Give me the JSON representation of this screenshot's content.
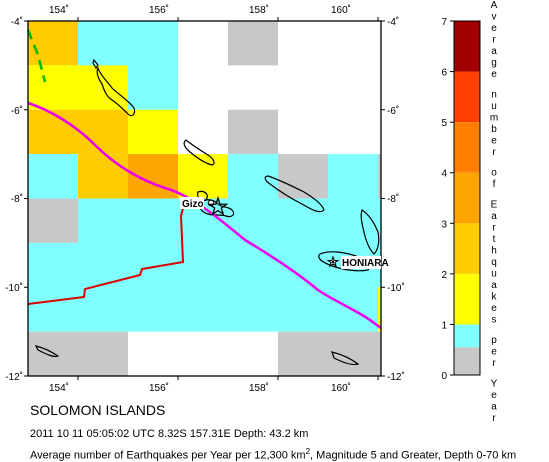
{
  "map": {
    "lon_ticks": [
      "154˚",
      "156˚",
      "158˚",
      "160˚"
    ],
    "lat_ticks": [
      "-4˚",
      "-6˚",
      "-8˚",
      "-10˚",
      "-12˚"
    ],
    "grid_cells": [
      {
        "lon": 153,
        "lat": -4,
        "value": 2.0
      },
      {
        "lon": 154,
        "lat": -4,
        "value": 0.8
      },
      {
        "lon": 155,
        "lat": -4,
        "value": 0.8
      },
      {
        "lon": 157,
        "lat": -4,
        "value": 0.3
      },
      {
        "lon": 153,
        "lat": -5,
        "value": 1.6
      },
      {
        "lon": 154,
        "lat": -5,
        "value": 1.6
      },
      {
        "lon": 155,
        "lat": -5,
        "value": 0.8
      },
      {
        "lon": 153,
        "lat": -6,
        "value": 2.6
      },
      {
        "lon": 154,
        "lat": -6,
        "value": 2.6
      },
      {
        "lon": 155,
        "lat": -6,
        "value": 1.6
      },
      {
        "lon": 157,
        "lat": -6,
        "value": 0.3
      },
      {
        "lon": 153,
        "lat": -7,
        "value": 0.7
      },
      {
        "lon": 154,
        "lat": -7,
        "value": 2.5
      },
      {
        "lon": 155,
        "lat": -7,
        "value": 3.3
      },
      {
        "lon": 156,
        "lat": -7,
        "value": 1.6
      },
      {
        "lon": 157,
        "lat": -7,
        "value": 0.8
      },
      {
        "lon": 158,
        "lat": -7,
        "value": 0.3
      },
      {
        "lon": 159,
        "lat": -7,
        "value": 0.5
      },
      {
        "lon": 160,
        "lat": -7,
        "value": 0.3
      },
      {
        "lon": 153,
        "lat": -8,
        "value": 0.3
      },
      {
        "lon": 154,
        "lat": -8,
        "value": 0.8
      },
      {
        "lon": 155,
        "lat": -8,
        "value": 0.8
      },
      {
        "lon": 156,
        "lat": -8,
        "value": 0.8
      },
      {
        "lon": 157,
        "lat": -8,
        "value": 0.7
      },
      {
        "lon": 158,
        "lat": -8,
        "value": 0.8
      },
      {
        "lon": 159,
        "lat": -8,
        "value": 0.8
      },
      {
        "lon": 160,
        "lat": -8,
        "value": 0.5
      },
      {
        "lon": 161,
        "lat": -8,
        "value": 0.3
      },
      {
        "lon": 153,
        "lat": -9,
        "value": 0.5
      },
      {
        "lon": 154,
        "lat": -9,
        "value": 0.6
      },
      {
        "lon": 155,
        "lat": -9,
        "value": 0.7
      },
      {
        "lon": 156,
        "lat": -9,
        "value": 0.8
      },
      {
        "lon": 157,
        "lat": -9,
        "value": 0.8
      },
      {
        "lon": 158,
        "lat": -9,
        "value": 0.8
      },
      {
        "lon": 159,
        "lat": -9,
        "value": 0.8
      },
      {
        "lon": 160,
        "lat": -9,
        "value": 0.8
      },
      {
        "lon": 161,
        "lat": -9,
        "value": 0.8
      },
      {
        "lon": 153,
        "lat": -10,
        "value": 0.5
      },
      {
        "lon": 154,
        "lat": -10,
        "value": 0.6
      },
      {
        "lon": 155,
        "lat": -10,
        "value": 0.7
      },
      {
        "lon": 156,
        "lat": -10,
        "value": 0.7
      },
      {
        "lon": 157,
        "lat": -10,
        "value": 0.6
      },
      {
        "lon": 158,
        "lat": -10,
        "value": 0.8
      },
      {
        "lon": 159,
        "lat": -10,
        "value": 0.8
      },
      {
        "lon": 160,
        "lat": -10,
        "value": 1.5
      },
      {
        "lon": 161,
        "lat": -10,
        "value": 1.5
      },
      {
        "lon": 153,
        "lat": -11,
        "value": 0.3
      },
      {
        "lon": 154,
        "lat": -11,
        "value": 0.3
      },
      {
        "lon": 158,
        "lat": -11,
        "value": 0.3
      },
      {
        "lon": 159,
        "lat": -11,
        "value": 0.3
      },
      {
        "lon": 160,
        "lat": -11,
        "value": 0.3
      },
      {
        "lon": 161,
        "lat": -11,
        "value": 1.5
      }
    ],
    "cities": [
      {
        "name": "Gizo",
        "lon": 156.85,
        "lat": -8.1
      },
      {
        "name": "HONIARA",
        "lon": 159.95,
        "lat": -9.43
      }
    ],
    "epicenter": {
      "lon": 157.31,
      "lat": -8.32
    }
  },
  "legend": {
    "title": "Average number of Earthquakes per Year",
    "ticks": [
      "0",
      "1",
      "2",
      "3",
      "4",
      "5",
      "6",
      "7"
    ],
    "colors": [
      "#c8c8c8",
      "#7fffff",
      "#ffff00",
      "#ffcc00",
      "#ffa500",
      "#ff7f00",
      "#ff4000",
      "#e01000",
      "#a00000"
    ]
  },
  "title": "SOLOMON ISLANDS",
  "info": "2011 10 11 05:05:02 UTC 8.32S 157.31E Depth: 43.2 km",
  "caption": {
    "text1": "Average number of Earthquakes per Year per 12,300 km",
    "sup": "2",
    "text2": ", Magnitude 5 and Greater, Depth 0-70 km"
  }
}
